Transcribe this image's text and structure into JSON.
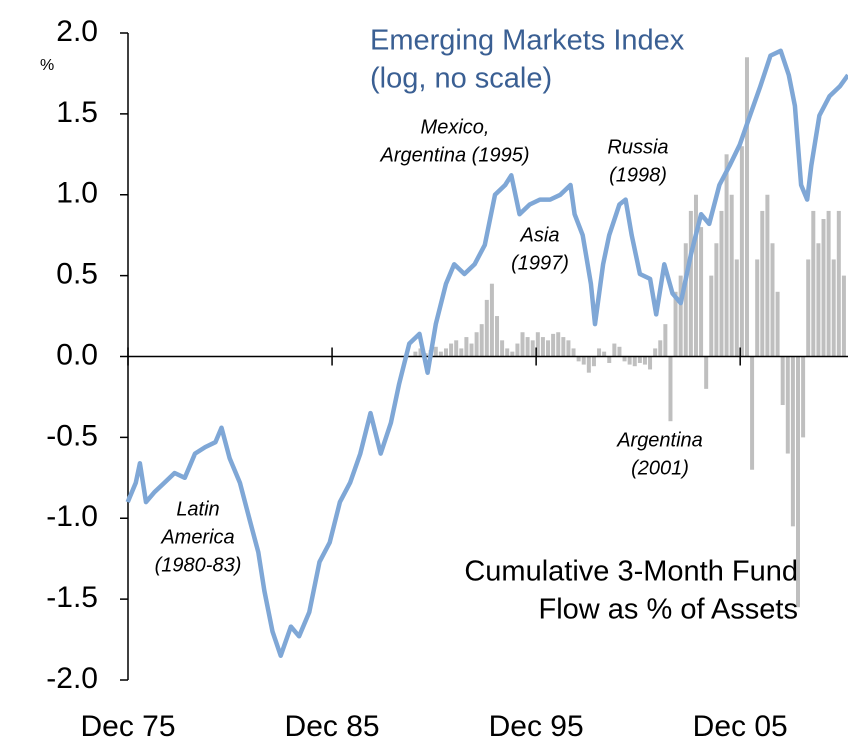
{
  "chart_data": {
    "type": "line",
    "unit_label": "%",
    "xlim": [
      1975.917,
      2011.2
    ],
    "xticks": [
      {
        "value": 1975.917,
        "label": "Dec 75"
      },
      {
        "value": 1985.917,
        "label": "Dec 85"
      },
      {
        "value": 1995.917,
        "label": "Dec 95"
      },
      {
        "value": 2005.917,
        "label": "Dec 05"
      }
    ],
    "ylim": [
      -2,
      2
    ],
    "yticks": [
      {
        "value": 2,
        "label": "2.0"
      },
      1.5,
      {
        "value": 1,
        "label": "1.0"
      },
      0.5,
      {
        "value": 0,
        "label": "0.0"
      },
      -0.5,
      {
        "value": -1,
        "label": "-1.0"
      },
      -1.5,
      {
        "value": -2,
        "label": "-2.0"
      }
    ],
    "series": [
      {
        "name": [
          "Emerging Markets Index",
          "(log, no scale)"
        ],
        "type": "line",
        "color": "#7fa7d6",
        "label_color": "#3a5f93",
        "x": [
          1975.9,
          1976.3,
          1976.5,
          1976.8,
          1977.2,
          1977.7,
          1978.2,
          1978.7,
          1979.2,
          1979.7,
          1980.2,
          1980.5,
          1980.9,
          1981.4,
          1981.9,
          1982.3,
          1982.6,
          1983.0,
          1983.4,
          1983.9,
          1984.3,
          1984.8,
          1985.3,
          1985.8,
          1986.3,
          1986.8,
          1987.3,
          1987.8,
          1988.3,
          1988.8,
          1989.2,
          1989.7,
          1990.2,
          1990.6,
          1991.0,
          1991.5,
          1991.9,
          1992.4,
          1992.9,
          1993.4,
          1993.9,
          1994.4,
          1994.7,
          1995.1,
          1995.6,
          1996.1,
          1996.6,
          1997.1,
          1997.6,
          1997.8,
          1998.2,
          1998.6,
          1998.8,
          1999.2,
          1999.5,
          2000.0,
          2000.3,
          2000.6,
          2001.0,
          2001.5,
          2001.8,
          2002.2,
          2002.6,
          2003.0,
          2003.5,
          2004.0,
          2004.4,
          2004.9,
          2005.4,
          2005.9,
          2006.4,
          2006.9,
          2007.4,
          2007.9,
          2008.3,
          2008.6,
          2008.9,
          2009.2,
          2009.4,
          2009.8,
          2010.3,
          2010.8,
          2011.2
        ],
        "values": [
          -0.9,
          -0.78,
          -0.66,
          -0.9,
          -0.84,
          -0.78,
          -0.72,
          -0.75,
          -0.6,
          -0.56,
          -0.53,
          -0.44,
          -0.63,
          -0.78,
          -1.02,
          -1.21,
          -1.45,
          -1.7,
          -1.85,
          -1.67,
          -1.73,
          -1.58,
          -1.27,
          -1.15,
          -0.9,
          -0.78,
          -0.6,
          -0.35,
          -0.6,
          -0.41,
          -0.17,
          0.08,
          0.14,
          -0.1,
          0.2,
          0.45,
          0.57,
          0.51,
          0.57,
          0.69,
          1.0,
          1.06,
          1.12,
          0.88,
          0.94,
          0.97,
          0.97,
          1.0,
          1.06,
          0.88,
          0.75,
          0.45,
          0.2,
          0.57,
          0.75,
          0.94,
          0.97,
          0.75,
          0.51,
          0.48,
          0.26,
          0.57,
          0.39,
          0.33,
          0.63,
          0.88,
          0.82,
          1.06,
          1.18,
          1.31,
          1.49,
          1.67,
          1.86,
          1.89,
          1.74,
          1.55,
          1.06,
          0.97,
          1.18,
          1.49,
          1.61,
          1.67,
          1.74
        ]
      },
      {
        "name": [
          "Cumulative 3-Month Fund",
          "Flow as % of Assets"
        ],
        "type": "bar",
        "color": "#bfbfbf",
        "label_color": "#000000",
        "x": [
          1990.0,
          1990.25,
          1990.5,
          1990.75,
          1991.0,
          1991.25,
          1991.5,
          1991.75,
          1992.0,
          1992.25,
          1992.5,
          1992.75,
          1993.0,
          1993.25,
          1993.5,
          1993.75,
          1994.0,
          1994.25,
          1994.5,
          1994.75,
          1995.0,
          1995.25,
          1995.5,
          1995.75,
          1996.0,
          1996.25,
          1996.5,
          1996.75,
          1997.0,
          1997.25,
          1997.5,
          1997.75,
          1998.0,
          1998.25,
          1998.5,
          1998.75,
          1999.0,
          1999.25,
          1999.5,
          1999.75,
          2000.0,
          2000.25,
          2000.5,
          2000.75,
          2001.0,
          2001.25,
          2001.5,
          2001.75,
          2002.0,
          2002.25,
          2002.5,
          2002.75,
          2003.0,
          2003.25,
          2003.5,
          2003.75,
          2004.0,
          2004.25,
          2004.5,
          2004.75,
          2005.0,
          2005.25,
          2005.5,
          2005.75,
          2006.0,
          2006.25,
          2006.5,
          2006.75,
          2007.0,
          2007.25,
          2007.5,
          2007.75,
          2008.0,
          2008.25,
          2008.5,
          2008.75,
          2009.0,
          2009.25,
          2009.5,
          2009.75,
          2010.0,
          2010.25,
          2010.5,
          2010.75,
          2011.0
        ],
        "values": [
          0.03,
          0.05,
          0.02,
          0.04,
          0.06,
          0.03,
          0.05,
          0.08,
          0.1,
          0.05,
          0.12,
          0.08,
          0.15,
          0.2,
          0.35,
          0.45,
          0.25,
          0.1,
          0.05,
          0.03,
          0.08,
          0.15,
          0.12,
          0.1,
          0.15,
          0.12,
          0.1,
          0.14,
          0.15,
          0.12,
          0.1,
          0.05,
          -0.03,
          -0.05,
          -0.1,
          -0.06,
          0.05,
          0.03,
          -0.04,
          0.08,
          0.06,
          -0.03,
          -0.05,
          -0.06,
          -0.04,
          -0.05,
          -0.08,
          0.05,
          0.1,
          0.2,
          -0.4,
          0.4,
          0.5,
          0.7,
          0.9,
          1.0,
          0.8,
          -0.2,
          0.5,
          0.7,
          0.9,
          1.25,
          1.0,
          0.6,
          1.3,
          1.85,
          -0.7,
          0.6,
          0.9,
          1.0,
          0.7,
          0.4,
          -0.3,
          -0.6,
          -1.05,
          -1.55,
          -0.5,
          0.6,
          0.9,
          0.7,
          0.85,
          0.9,
          0.6,
          0.9,
          0.5
        ]
      }
    ],
    "annotations": [
      [
        "Mexico,",
        "Argentina (1995)"
      ],
      [
        "Russia",
        "(1998)"
      ],
      [
        "Asia",
        "(1997)"
      ],
      [
        "Argentina",
        "(2001)"
      ],
      [
        "Latin",
        "America",
        "(1980-83)"
      ]
    ]
  }
}
